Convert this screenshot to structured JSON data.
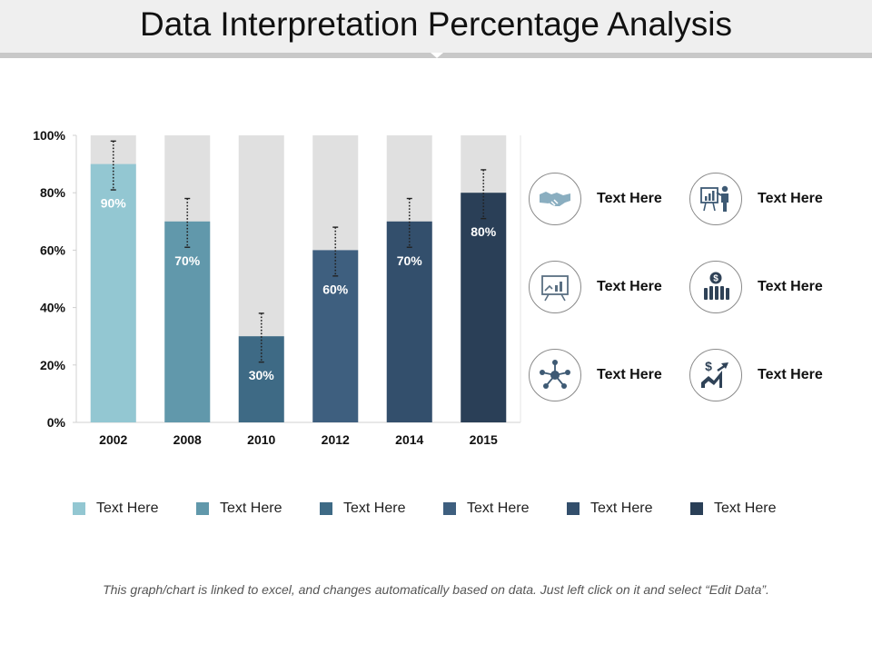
{
  "title": "Data Interpretation Percentage Analysis",
  "chart_data": {
    "type": "bar",
    "categories": [
      "2002",
      "2008",
      "2010",
      "2012",
      "2014",
      "2015"
    ],
    "values": [
      90,
      70,
      30,
      60,
      70,
      80
    ],
    "value_labels": [
      "90%",
      "70%",
      "30%",
      "60%",
      "70%",
      "80%"
    ],
    "error_range": [
      [
        81,
        98
      ],
      [
        61,
        78
      ],
      [
        21,
        38
      ],
      [
        51,
        68
      ],
      [
        61,
        78
      ],
      [
        71,
        88
      ]
    ],
    "max_value": 100,
    "ylim": [
      0,
      100
    ],
    "yticks": [
      0,
      20,
      40,
      60,
      80,
      100
    ],
    "ytick_labels": [
      "0%",
      "20%",
      "40%",
      "60%",
      "80%",
      "100%"
    ],
    "colors": [
      "#93c7d2",
      "#6198ab",
      "#3e6a85",
      "#3e5f7f",
      "#334f6c",
      "#2a3f57"
    ],
    "background_color": "#e0e0e0",
    "grid": false,
    "xlabel": "",
    "ylabel": ""
  },
  "features": [
    {
      "label": "Text Here",
      "icon": "handshake-icon"
    },
    {
      "label": "Text Here",
      "icon": "presenter-icon"
    },
    {
      "label": "Text Here",
      "icon": "chart-board-icon"
    },
    {
      "label": "Text Here",
      "icon": "money-bars-icon"
    },
    {
      "label": "Text Here",
      "icon": "network-icon"
    },
    {
      "label": "Text Here",
      "icon": "growth-dollar-icon"
    }
  ],
  "legend": [
    {
      "label": "Text Here",
      "color": "#93c7d2"
    },
    {
      "label": "Text Here",
      "color": "#6198ab"
    },
    {
      "label": "Text Here",
      "color": "#3e6a85"
    },
    {
      "label": "Text Here",
      "color": "#3e5f7f"
    },
    {
      "label": "Text Here",
      "color": "#334f6c"
    },
    {
      "label": "Text Here",
      "color": "#2a3f57"
    }
  ],
  "footnote": "This graph/chart is linked to excel, and changes automatically based on data. Just left click on it and select “Edit Data”."
}
